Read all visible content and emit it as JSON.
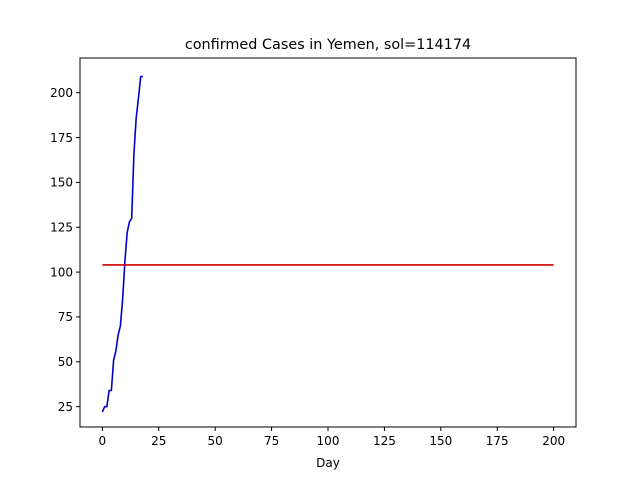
{
  "chart_data": {
    "type": "line",
    "title": "confirmed Cases in Yemen, sol=114174",
    "xlabel": "Day",
    "ylabel": "",
    "xlim": [
      -9.9,
      209.9
    ],
    "ylim": [
      13.65,
      219.35
    ],
    "xticks": [
      0,
      25,
      50,
      75,
      100,
      125,
      150,
      175,
      200
    ],
    "yticks": [
      25,
      50,
      75,
      100,
      125,
      150,
      175,
      200
    ],
    "grid": false,
    "series": [
      {
        "color": "#0000cc",
        "x": [
          0,
          1,
          2,
          3,
          4,
          5,
          6,
          7,
          8,
          9,
          10,
          11,
          12,
          13,
          14,
          15,
          16,
          17,
          18
        ],
        "y": [
          22,
          25,
          25,
          34,
          34,
          51,
          56,
          65,
          70,
          85,
          106,
          122,
          128,
          130,
          166,
          186,
          197,
          209,
          209
        ]
      },
      {
        "color": "#cc0000",
        "x": [
          0,
          200
        ],
        "y": [
          104,
          104
        ]
      }
    ]
  }
}
